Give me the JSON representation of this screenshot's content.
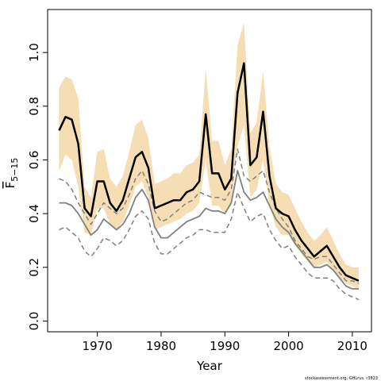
{
  "chart_data": {
    "type": "line",
    "xlabel": "Year",
    "ylabel": "F",
    "ylabel_subscript": "5−15",
    "credit": "stockassessment.org, GHLrus, r3823",
    "x": [
      1964,
      1965,
      1966,
      1967,
      1968,
      1969,
      1970,
      1971,
      1972,
      1973,
      1974,
      1975,
      1976,
      1977,
      1978,
      1979,
      1980,
      1981,
      1982,
      1983,
      1984,
      1985,
      1986,
      1987,
      1988,
      1989,
      1990,
      1991,
      1992,
      1993,
      1994,
      1995,
      1996,
      1997,
      1998,
      1999,
      2000,
      2001,
      2002,
      2003,
      2004,
      2005,
      2006,
      2007,
      2008,
      2009,
      2010,
      2011
    ],
    "xlim": [
      1962.2,
      2013
    ],
    "ylim": [
      -0.04,
      1.16
    ],
    "xticks": [
      "1970",
      "1980",
      "1990",
      "2000",
      "2010"
    ],
    "yticks": [
      "0.0",
      "0.2",
      "0.4",
      "0.6",
      "0.8",
      "1.0"
    ],
    "colors": {
      "band": "#f5deb3",
      "main": "#000000",
      "secondary": "#808080"
    },
    "series": [
      {
        "role": "estimate",
        "style": "solid-black",
        "values": [
          0.71,
          0.76,
          0.75,
          0.66,
          0.42,
          0.39,
          0.52,
          0.52,
          0.44,
          0.41,
          0.45,
          0.53,
          0.61,
          0.63,
          0.57,
          0.42,
          0.43,
          0.44,
          0.45,
          0.45,
          0.48,
          0.49,
          0.52,
          0.77,
          0.55,
          0.55,
          0.49,
          0.53,
          0.85,
          0.96,
          0.58,
          0.61,
          0.78,
          0.54,
          0.42,
          0.4,
          0.39,
          0.34,
          0.3,
          0.27,
          0.24,
          0.26,
          0.28,
          0.24,
          0.2,
          0.17,
          0.16,
          0.15
        ]
      },
      {
        "role": "band-lower",
        "values": [
          0.56,
          0.62,
          0.6,
          0.5,
          0.33,
          0.32,
          0.42,
          0.42,
          0.36,
          0.34,
          0.37,
          0.43,
          0.5,
          0.52,
          0.46,
          0.34,
          0.35,
          0.36,
          0.37,
          0.38,
          0.4,
          0.41,
          0.44,
          0.6,
          0.43,
          0.43,
          0.4,
          0.43,
          0.65,
          0.73,
          0.46,
          0.49,
          0.6,
          0.43,
          0.35,
          0.32,
          0.32,
          0.28,
          0.25,
          0.22,
          0.2,
          0.21,
          0.22,
          0.19,
          0.16,
          0.14,
          0.13,
          0.12
        ]
      },
      {
        "role": "band-upper",
        "values": [
          0.87,
          0.91,
          0.9,
          0.83,
          0.5,
          0.46,
          0.63,
          0.64,
          0.53,
          0.5,
          0.54,
          0.63,
          0.73,
          0.75,
          0.68,
          0.51,
          0.52,
          0.53,
          0.55,
          0.55,
          0.58,
          0.59,
          0.62,
          0.94,
          0.67,
          0.67,
          0.58,
          0.64,
          1.03,
          1.11,
          0.7,
          0.74,
          0.93,
          0.65,
          0.51,
          0.48,
          0.47,
          0.42,
          0.37,
          0.33,
          0.3,
          0.32,
          0.35,
          0.3,
          0.25,
          0.21,
          0.2,
          0.2
        ]
      },
      {
        "role": "comparison",
        "style": "solid-grey",
        "values": [
          0.44,
          0.44,
          0.43,
          0.4,
          0.36,
          0.32,
          0.34,
          0.38,
          0.36,
          0.34,
          0.36,
          0.4,
          0.46,
          0.49,
          0.45,
          0.35,
          0.31,
          0.31,
          0.33,
          0.35,
          0.37,
          0.38,
          0.39,
          0.42,
          0.41,
          0.41,
          0.4,
          0.44,
          0.56,
          0.48,
          0.45,
          0.46,
          0.48,
          0.43,
          0.38,
          0.35,
          0.33,
          0.29,
          0.26,
          0.23,
          0.2,
          0.2,
          0.21,
          0.19,
          0.16,
          0.13,
          0.12,
          0.12
        ]
      },
      {
        "role": "comparison-upper",
        "style": "dashed-grey",
        "values": [
          0.53,
          0.52,
          0.49,
          0.44,
          0.4,
          0.36,
          0.4,
          0.44,
          0.42,
          0.4,
          0.42,
          0.47,
          0.53,
          0.56,
          0.51,
          0.41,
          0.37,
          0.38,
          0.4,
          0.42,
          0.44,
          0.45,
          0.48,
          0.47,
          0.46,
          0.46,
          0.45,
          0.49,
          0.64,
          0.54,
          0.52,
          0.54,
          0.56,
          0.48,
          0.42,
          0.38,
          0.35,
          0.3,
          0.27,
          0.24,
          0.23,
          0.24,
          0.24,
          0.21,
          0.18,
          0.15,
          0.15,
          0.14
        ]
      },
      {
        "role": "comparison-lower",
        "style": "dashed-grey",
        "values": [
          0.34,
          0.35,
          0.33,
          0.31,
          0.26,
          0.24,
          0.27,
          0.31,
          0.3,
          0.28,
          0.3,
          0.34,
          0.39,
          0.41,
          0.38,
          0.29,
          0.25,
          0.25,
          0.27,
          0.29,
          0.31,
          0.32,
          0.34,
          0.34,
          0.33,
          0.33,
          0.33,
          0.38,
          0.48,
          0.42,
          0.37,
          0.39,
          0.4,
          0.34,
          0.3,
          0.27,
          0.28,
          0.24,
          0.21,
          0.18,
          0.16,
          0.16,
          0.16,
          0.15,
          0.12,
          0.1,
          0.09,
          0.08
        ]
      }
    ]
  }
}
